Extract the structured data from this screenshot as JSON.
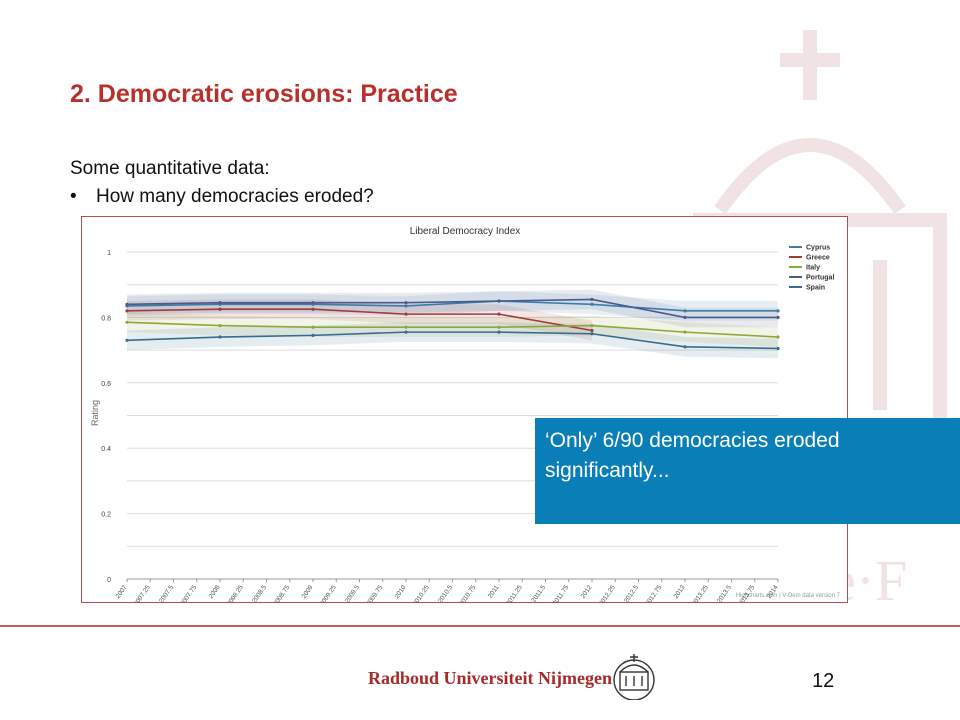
{
  "slide": {
    "title": "2. Democratic erosions: Practice",
    "intro": "Some quantitative data:",
    "bullet": "How many democracies eroded?",
    "callout": "‘Only’ 6/90 democracies eroded significantly...",
    "university": "Radboud Universiteit Nijmegen",
    "page_number": "12"
  },
  "colors": {
    "accent": "#b8302b",
    "callout_bg": "#0a7fb7",
    "footer_line": "#c55a58"
  },
  "chart_data": {
    "type": "line",
    "title": "Liberal Democracy Index",
    "xlabel": "",
    "ylabel": "Rating",
    "ylim": [
      0,
      1
    ],
    "xlim": [
      2007,
      2014
    ],
    "yticks": [
      "0",
      "0.2",
      "0.4",
      "0.6",
      "0.8",
      "1"
    ],
    "xticks": [
      "2007",
      "2007.25",
      "2007.5",
      "2007.75",
      "2008",
      "2008.25",
      "2008.5",
      "2008.75",
      "2009",
      "2009.25",
      "2009.5",
      "2009.75",
      "2010",
      "2010.25",
      "2010.5",
      "2010.75",
      "2011",
      "2011.25",
      "2011.5",
      "2011.75",
      "2012",
      "2012.25",
      "2012.5",
      "2012.75",
      "2013",
      "2013.25",
      "2013.5",
      "2013.75",
      "2014"
    ],
    "grid": true,
    "legend_position": "top-right",
    "credit": "Highcharts.com | V-Dem data version 7",
    "series": [
      {
        "name": "Cyprus",
        "color": "#3e7ca8",
        "x": [
          2007,
          2008,
          2009,
          2010,
          2011,
          2012,
          2013,
          2014
        ],
        "values": [
          0.835,
          0.84,
          0.84,
          0.835,
          0.85,
          0.84,
          0.82,
          0.82
        ]
      },
      {
        "name": "Greece",
        "color": "#a33a36",
        "x": [
          2007,
          2008,
          2009,
          2010,
          2011,
          2012
        ],
        "values": [
          0.82,
          0.825,
          0.825,
          0.81,
          0.81,
          0.76
        ]
      },
      {
        "name": "Italy",
        "color": "#8fa73a",
        "x": [
          2007,
          2008,
          2009,
          2010,
          2011,
          2012,
          2013,
          2014
        ],
        "values": [
          0.785,
          0.775,
          0.77,
          0.77,
          0.77,
          0.775,
          0.755,
          0.74
        ]
      },
      {
        "name": "Portugal",
        "color": "#4a5a8c",
        "x": [
          2007,
          2008,
          2009,
          2010,
          2011,
          2012,
          2013,
          2014
        ],
        "values": [
          0.84,
          0.845,
          0.845,
          0.845,
          0.85,
          0.855,
          0.8,
          0.8
        ]
      },
      {
        "name": "Spain",
        "color": "#356e8a",
        "x": [
          2007,
          2008,
          2009,
          2010,
          2011,
          2012,
          2013,
          2014
        ],
        "values": [
          0.73,
          0.74,
          0.745,
          0.755,
          0.755,
          0.75,
          0.71,
          0.705
        ]
      }
    ]
  }
}
